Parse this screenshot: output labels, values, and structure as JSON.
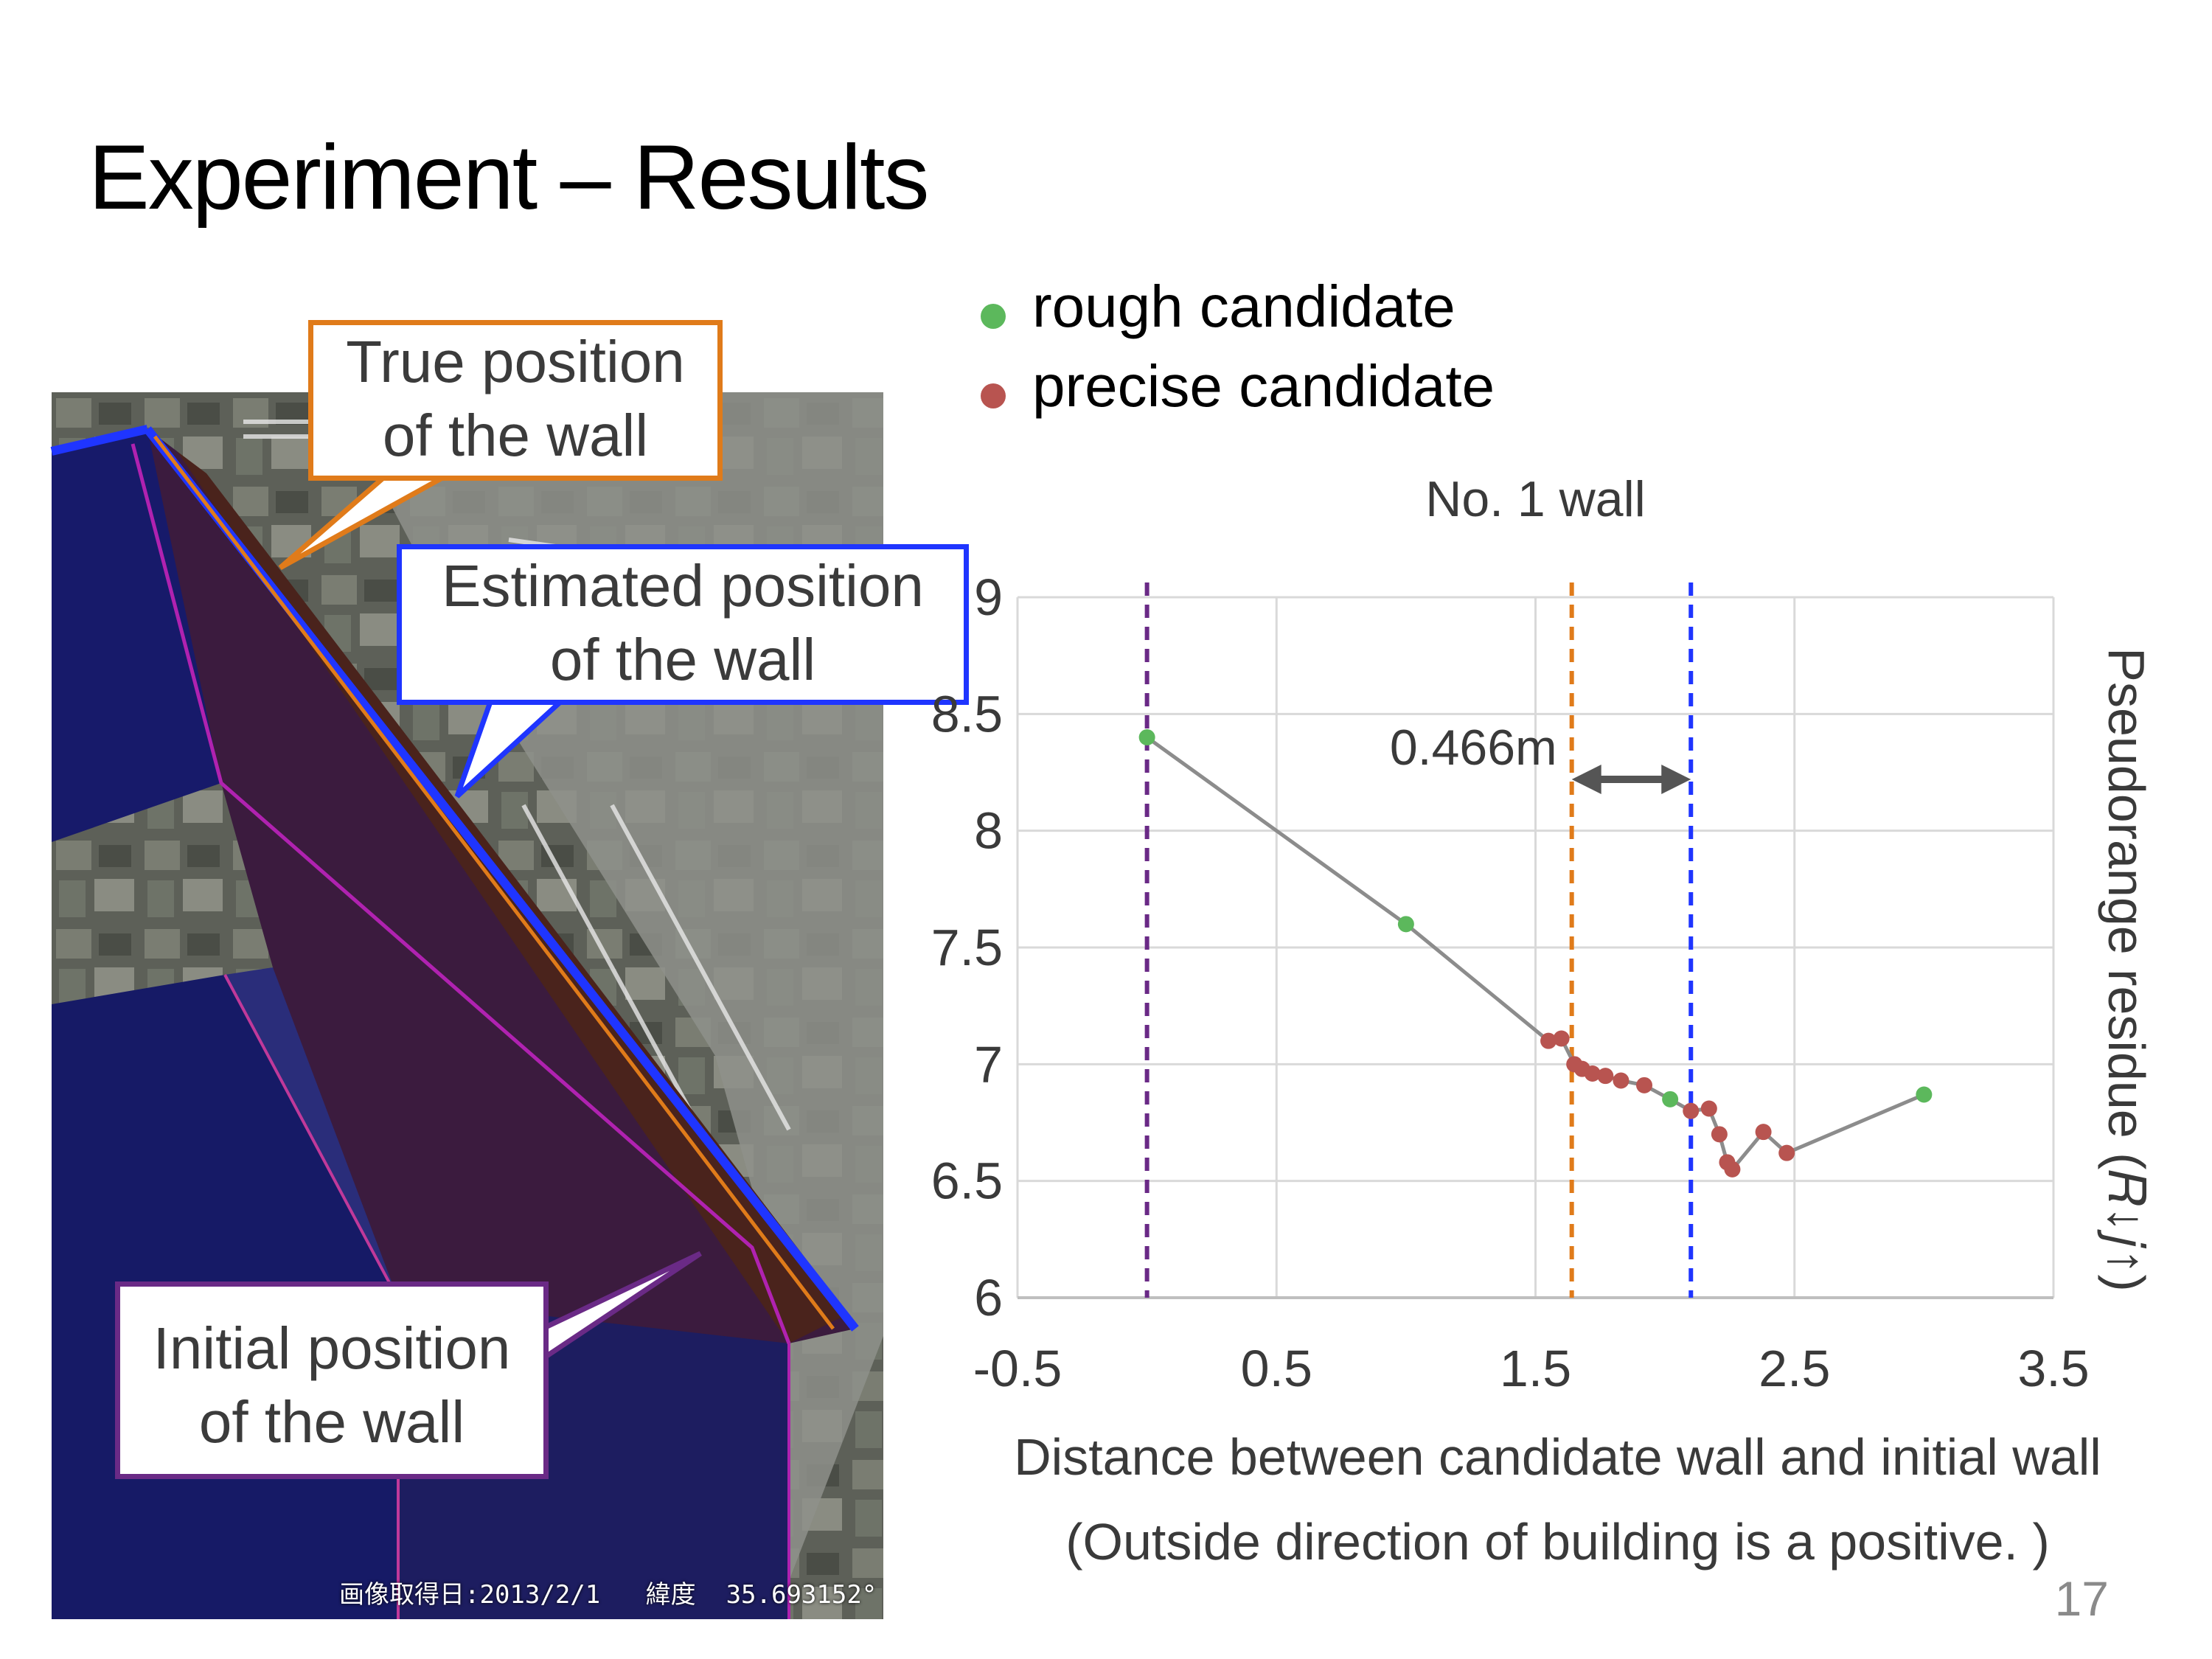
{
  "slide": {
    "title": "Experiment – Results",
    "page_number": "17"
  },
  "photo": {
    "caption": "画像取得日:2013/2/1   緯度  35.693152°"
  },
  "callouts": {
    "true_position": {
      "line1": "True position",
      "line2": "of the wall",
      "color": "#e07b1a"
    },
    "estimated_position": {
      "line1": "Estimated position",
      "line2": "of the wall",
      "color": "#1f35ff"
    },
    "initial_position": {
      "line1": "Initial position",
      "line2": "of the wall",
      "color": "#6a2a86"
    }
  },
  "legend": {
    "items": [
      {
        "label": "rough candidate",
        "color": "#5cb85c"
      },
      {
        "label": "precise candidate",
        "color": "#b85450"
      }
    ]
  },
  "chart_data": {
    "type": "scatter",
    "title": "No. 1 wall",
    "xlabel": "Distance between candidate wall and initial wall",
    "xlabel_note": "(Outside direction of building is a positive. )",
    "ylabel": "Pseudorange residue (𝑅↓𝑗↑)",
    "xlim": [
      -0.5,
      3.5
    ],
    "ylim": [
      6,
      9
    ],
    "x_ticks": [
      "-0.5",
      "0.5",
      "1.5",
      "2.5",
      "3.5"
    ],
    "y_ticks": [
      "6",
      "6.5",
      "7",
      "7.5",
      "8",
      "8.5",
      "9"
    ],
    "grid": true,
    "line_color": "#8c8c8c",
    "path": [
      [
        0,
        8.4
      ],
      [
        1.0,
        7.6
      ],
      [
        1.55,
        7.1
      ],
      [
        1.6,
        7.11
      ],
      [
        1.65,
        7.0
      ],
      [
        1.68,
        6.98
      ],
      [
        1.72,
        6.96
      ],
      [
        1.77,
        6.95
      ],
      [
        1.83,
        6.93
      ],
      [
        1.92,
        6.91
      ],
      [
        2.02,
        6.85
      ],
      [
        2.1,
        6.8
      ],
      [
        2.17,
        6.81
      ],
      [
        2.21,
        6.7
      ],
      [
        2.24,
        6.58
      ],
      [
        2.26,
        6.55
      ],
      [
        2.38,
        6.71
      ],
      [
        2.47,
        6.62
      ],
      [
        3.0,
        6.87
      ]
    ],
    "series": [
      {
        "name": "rough candidate",
        "color": "#5cb85c",
        "points": [
          [
            0,
            8.4
          ],
          [
            1.0,
            7.6
          ],
          [
            2.02,
            6.85
          ],
          [
            3.0,
            6.87
          ]
        ]
      },
      {
        "name": "precise candidate",
        "color": "#b85450",
        "points": [
          [
            1.55,
            7.1
          ],
          [
            1.6,
            7.11
          ],
          [
            1.65,
            7.0
          ],
          [
            1.68,
            6.98
          ],
          [
            1.72,
            6.96
          ],
          [
            1.77,
            6.95
          ],
          [
            1.83,
            6.93
          ],
          [
            1.92,
            6.91
          ],
          [
            2.1,
            6.8
          ],
          [
            2.17,
            6.81
          ],
          [
            2.21,
            6.7
          ],
          [
            2.24,
            6.58
          ],
          [
            2.26,
            6.55
          ],
          [
            2.38,
            6.71
          ],
          [
            2.47,
            6.62
          ]
        ]
      }
    ],
    "vertical_lines": [
      {
        "name": "initial-wall-line",
        "x": 0,
        "color": "#6a2a86"
      },
      {
        "name": "true-wall-line",
        "x": 1.64,
        "color": "#e07b1a"
      },
      {
        "name": "estimated-wall-line",
        "x": 2.1,
        "color": "#1f35ff"
      }
    ],
    "annotation": {
      "text": "0.466m",
      "from_x": 1.64,
      "to_x": 2.1,
      "y": 8.22,
      "color": "#555555"
    }
  }
}
